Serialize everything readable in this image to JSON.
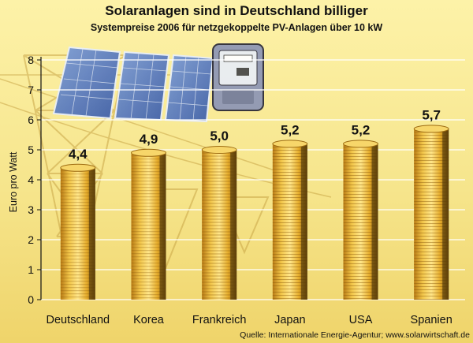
{
  "title": "Solaranlagen sind in Deutschland billiger",
  "subtitle": "Systempreise 2006 für netzgekoppelte PV-Anlagen über 10 kW",
  "source": "Quelle: Internationale Energie-Agentur; www.solarwirtschaft.de",
  "colors": {
    "background": "#f6e58c",
    "coin": "#e8b830",
    "coin_dark": "#9c6a10",
    "grid": "#ffffff"
  },
  "chart_data": {
    "type": "bar",
    "title": "Solaranlagen sind in Deutschland billiger",
    "subtitle": "Systempreise 2006 für netzgekoppelte PV-Anlagen über 10 kW",
    "xlabel": "",
    "ylabel": "Euro pro Watt",
    "categories": [
      "Deutschland",
      "Korea",
      "Frankreich",
      "Japan",
      "USA",
      "Spanien"
    ],
    "values": [
      4.4,
      4.9,
      5.0,
      5.2,
      5.2,
      5.7
    ],
    "value_labels": [
      "4,4",
      "4,9",
      "5,0",
      "5,2",
      "5,2",
      "5,7"
    ],
    "ylim": [
      0,
      8
    ],
    "yticks": [
      0,
      1,
      2,
      3,
      4,
      5,
      6,
      7,
      8
    ],
    "grid": true,
    "legend": "none"
  }
}
